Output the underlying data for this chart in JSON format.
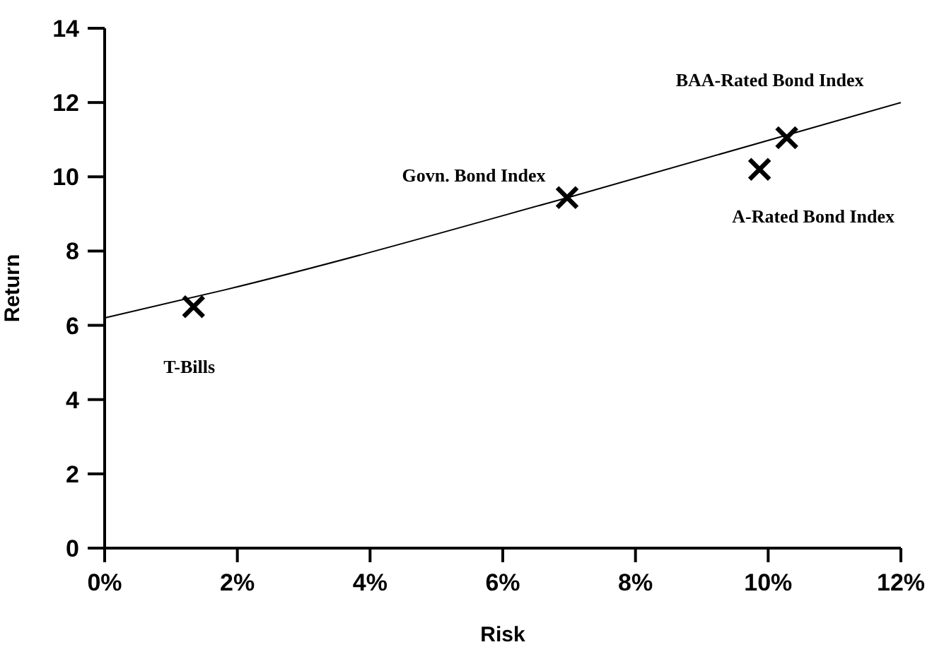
{
  "chart_data": {
    "type": "scatter",
    "xlabel": "Risk",
    "ylabel": "Return",
    "xlim": [
      0,
      12
    ],
    "xticks": [
      {
        "value": 0,
        "label": "0%"
      },
      {
        "value": 2,
        "label": "2%"
      },
      {
        "value": 4,
        "label": "4%"
      },
      {
        "value": 6,
        "label": "6%"
      },
      {
        "value": 8,
        "label": "8%"
      },
      {
        "value": 10,
        "label": "10%"
      },
      {
        "value": 12,
        "label": "12%"
      }
    ],
    "ylim": [
      0,
      14
    ],
    "yticks": [
      0,
      2,
      4,
      6,
      8,
      10,
      12,
      14
    ],
    "grid": false,
    "series": [
      {
        "color": "#000000",
        "marker": "cross",
        "x": [
          1.34,
          6.97,
          9.87,
          10.28
        ],
        "values": [
          6.5,
          9.44,
          10.2,
          11.05
        ]
      },
      {
        "type": "line",
        "color": "#000000",
        "marker": "none",
        "line_style": "solid",
        "x": [
          0,
          1.8,
          7,
          12
        ],
        "values": [
          6.2,
          6.95,
          9.45,
          12
        ]
      }
    ],
    "annotations": [
      {
        "text": "T-Bills",
        "x": 1.34,
        "y": 6.5
      },
      {
        "text": "Govn.  Bond Index",
        "x": 6.97,
        "y": 9.44
      },
      {
        "text": "BAA-Rated Bond Index",
        "x": 10.28,
        "y": 11.05
      },
      {
        "text": "A-Rated Bond Index",
        "x": 9.87,
        "y": 10.2
      }
    ]
  }
}
